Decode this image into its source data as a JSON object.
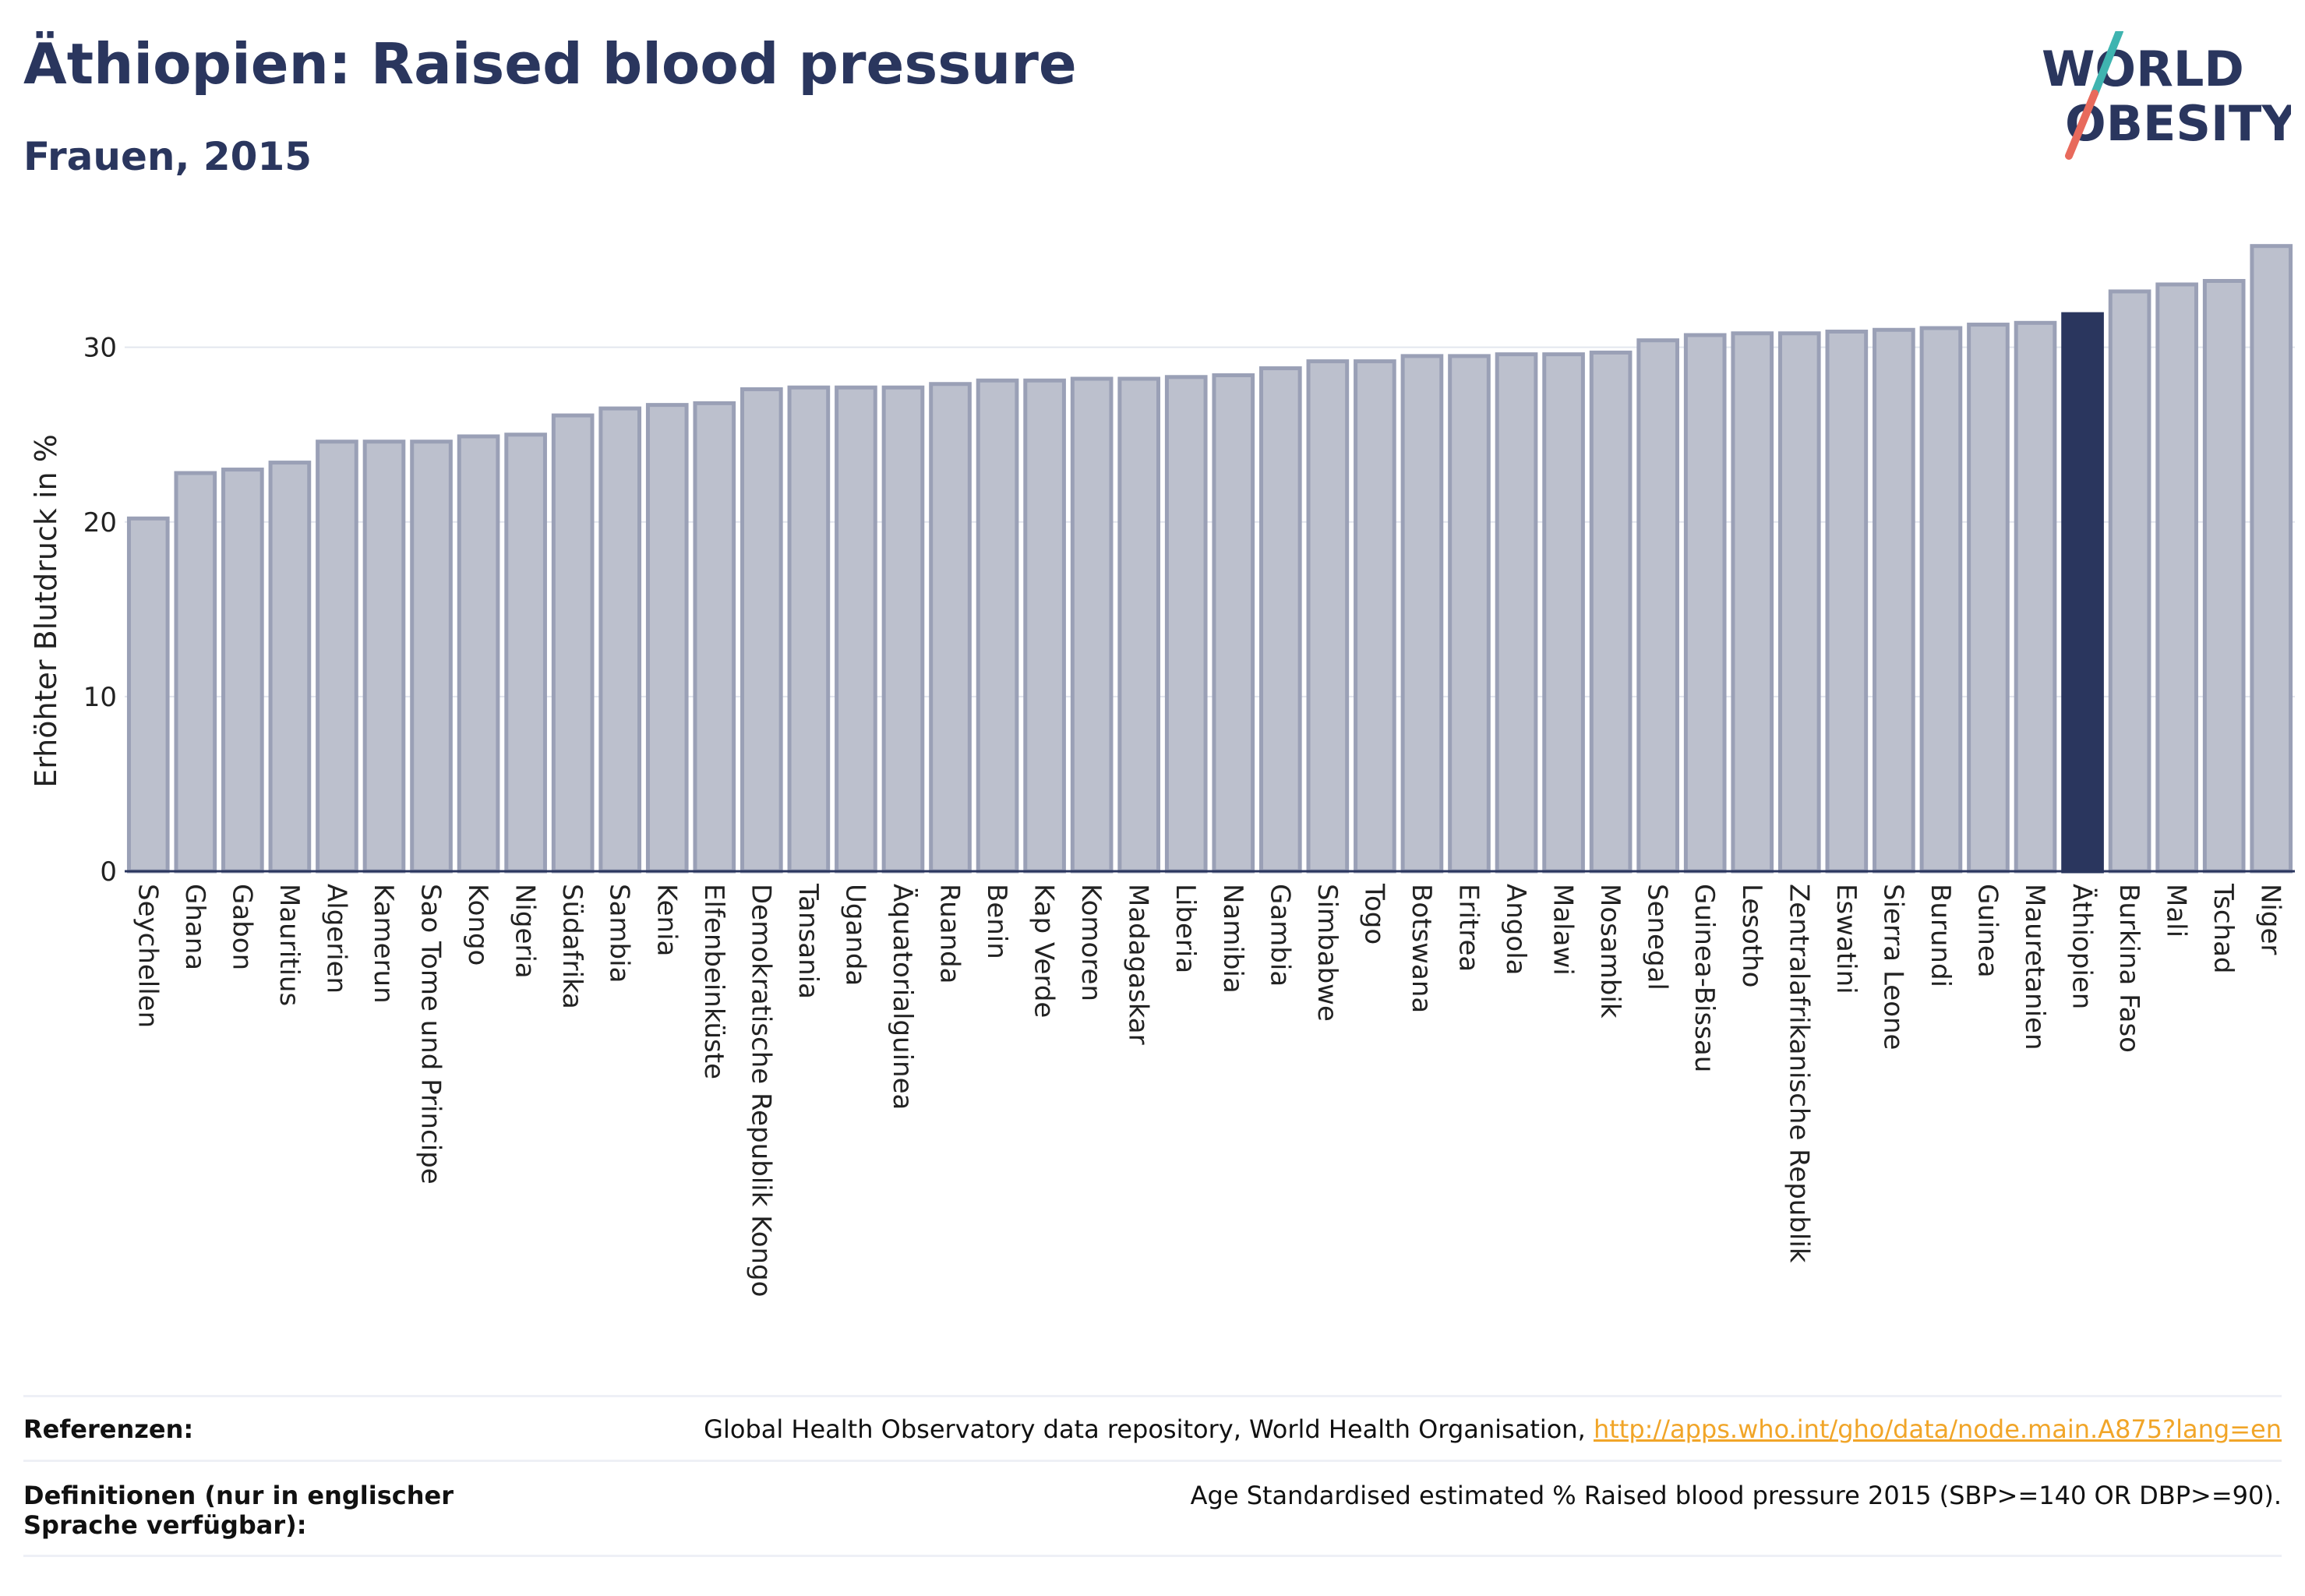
{
  "header": {
    "title": "Äthiopien: Raised blood pressure",
    "subtitle": "Frauen, 2015"
  },
  "logo": {
    "line1": "WORLD",
    "line2": "OBESITY"
  },
  "footer": {
    "ref_label": "Referenzen:",
    "ref_text": "Global Health Observatory data repository, World Health Organisation, ",
    "ref_link": "http://apps.who.int/gho/data/node.main.A875?lang=en",
    "def_label": "Definitionen (nur in englischer Sprache verfügbar):",
    "def_text": "Age Standardised estimated % Raised blood pressure 2015 (SBP>=140 OR DBP>=90)."
  },
  "colors": {
    "bar": "#bcc0cd",
    "bar_stroke": "#9aa0b6",
    "highlight": "#2a365e",
    "logo_teal": "#3fb4b0",
    "logo_red": "#e86a5c"
  },
  "chart_data": {
    "type": "bar",
    "title": "",
    "xlabel": "",
    "ylabel": "Erhöhter Blutdruck in %",
    "ylim": [
      0,
      36.5
    ],
    "yticks": [
      0,
      10,
      20,
      30
    ],
    "grid": true,
    "highlight": "Äthiopien",
    "categories": [
      "Seychellen",
      "Ghana",
      "Gabon",
      "Mauritius",
      "Algerien",
      "Kamerun",
      "Sao Tome und Principe",
      "Kongo",
      "Nigeria",
      "Südafrika",
      "Sambia",
      "Kenia",
      "Elfenbeinküste",
      "Demokratische Republik Kongo",
      "Tansania",
      "Uganda",
      "Äquatorialguinea",
      "Ruanda",
      "Benin",
      "Kap Verde",
      "Komoren",
      "Madagaskar",
      "Liberia",
      "Namibia",
      "Gambia",
      "Simbabwe",
      "Togo",
      "Botswana",
      "Eritrea",
      "Angola",
      "Malawi",
      "Mosambik",
      "Senegal",
      "Guinea-Bissau",
      "Lesotho",
      "Zentralafrikanische Republik",
      "Eswatini",
      "Sierra Leone",
      "Burundi",
      "Guinea",
      "Mauretanien",
      "Äthiopien",
      "Burkina Faso",
      "Mali",
      "Tschad",
      "Niger"
    ],
    "values": [
      20.2,
      22.8,
      23.0,
      23.4,
      24.6,
      24.6,
      24.6,
      24.9,
      25.0,
      26.1,
      26.5,
      26.7,
      26.8,
      27.6,
      27.7,
      27.7,
      27.7,
      27.9,
      28.1,
      28.1,
      28.2,
      28.2,
      28.3,
      28.4,
      28.8,
      29.2,
      29.2,
      29.5,
      29.5,
      29.6,
      29.6,
      29.7,
      30.4,
      30.7,
      30.8,
      30.8,
      30.9,
      31.0,
      31.1,
      31.3,
      31.4,
      31.9,
      33.2,
      33.6,
      33.8,
      35.8
    ]
  }
}
